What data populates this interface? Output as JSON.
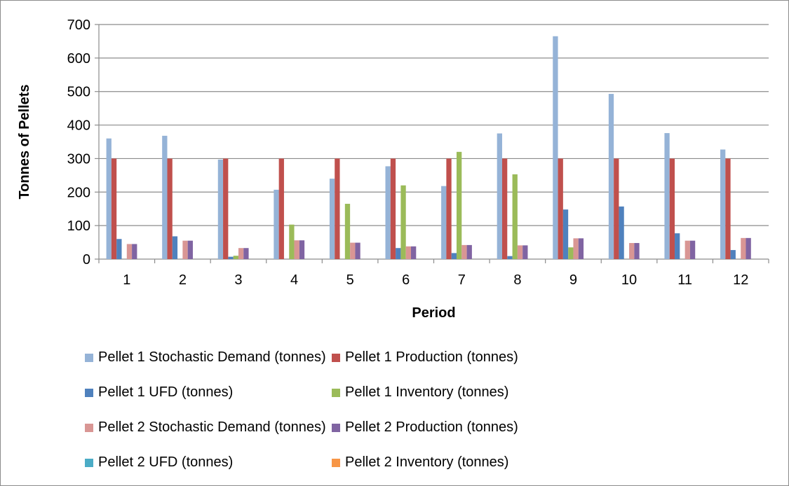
{
  "chart_data": {
    "type": "bar",
    "title": "",
    "xlabel": "Period",
    "ylabel": "Tonnes of Pellets",
    "ylim": [
      0,
      700
    ],
    "yticks": [
      0,
      100,
      200,
      300,
      400,
      500,
      600,
      700
    ],
    "grid": true,
    "legend_position": "bottom",
    "categories": [
      "1",
      "2",
      "3",
      "4",
      "5",
      "6",
      "7",
      "8",
      "9",
      "10",
      "11",
      "12"
    ],
    "series": [
      {
        "name": "Pellet 1 Stochastic Demand (tonnes)",
        "color": "#95b3d7",
        "values": [
          360,
          368,
          297,
          207,
          240,
          277,
          218,
          375,
          665,
          493,
          376,
          327
        ]
      },
      {
        "name": "Pellet 1 Production  (tonnes)",
        "color": "#c0504d",
        "values": [
          300,
          300,
          300,
          300,
          300,
          300,
          300,
          300,
          300,
          300,
          300,
          300
        ]
      },
      {
        "name": "Pellet 1 UFD (tonnes)",
        "color": "#4f81bd",
        "values": [
          60,
          68,
          7,
          0,
          0,
          33,
          18,
          9,
          148,
          157,
          77,
          27
        ]
      },
      {
        "name": "Pellet 1 Inventory (tonnes)",
        "color": "#9bbb59",
        "values": [
          0,
          0,
          10,
          103,
          165,
          220,
          320,
          253,
          35,
          0,
          0,
          0
        ]
      },
      {
        "name": "Pellet 2 Stochastic Demand (tonnes)",
        "color": "#d99694",
        "values": [
          45,
          55,
          33,
          56,
          49,
          38,
          42,
          41,
          62,
          48,
          55,
          63
        ]
      },
      {
        "name": "Pellet 2 Production  (tonnes)",
        "color": "#8064a2",
        "values": [
          45,
          55,
          33,
          56,
          49,
          38,
          42,
          41,
          62,
          48,
          55,
          63
        ]
      },
      {
        "name": "Pellet 2 UFD (tonnes)",
        "color": "#4bacc6",
        "values": [
          0,
          0,
          0,
          0,
          0,
          0,
          0,
          0,
          0,
          0,
          0,
          0
        ]
      },
      {
        "name": "Pellet 2 Inventory (tonnes)",
        "color": "#f79646",
        "values": [
          0,
          0,
          0,
          0,
          0,
          0,
          0,
          0,
          0,
          0,
          0,
          0
        ]
      }
    ]
  }
}
